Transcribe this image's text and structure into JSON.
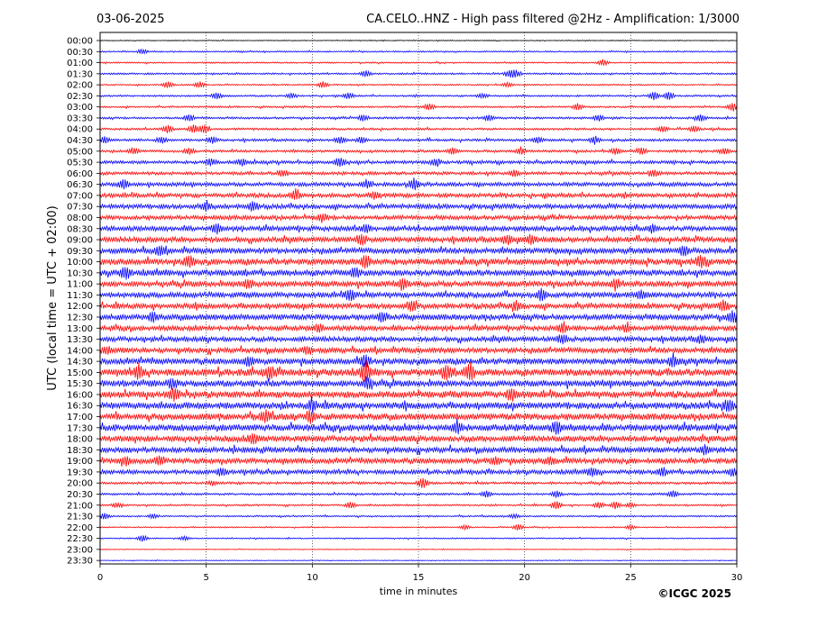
{
  "chart_data": {
    "type": "line",
    "date": "03-06-2025",
    "title": "CA.CELO..HNZ - High pass filtered @2Hz - Amplification: 1/3000",
    "xlabel": "time in minutes",
    "ylabel": "UTC (local time = UTC + 02:00)",
    "copyright": "©ICGC 2025",
    "xlim": [
      0,
      30
    ],
    "xticks": [
      "0",
      "5",
      "10",
      "15",
      "20",
      "25",
      "30"
    ],
    "xtick_values": [
      0,
      5,
      10,
      15,
      20,
      25,
      30
    ],
    "grid": "vertical dotted at each x tick",
    "series_colors": [
      "#000000",
      "#ff0000",
      "#0000ff"
    ],
    "rows": [
      {
        "label": "00:00",
        "color": "#000000",
        "amp": 0.5,
        "events": []
      },
      {
        "label": "00:30",
        "color": "#0000ff",
        "amp": 0.8,
        "events": [
          {
            "t": 2.0,
            "a": 2
          }
        ]
      },
      {
        "label": "01:00",
        "color": "#ff0000",
        "amp": 0.8,
        "events": [
          {
            "t": 23.7,
            "a": 3
          }
        ]
      },
      {
        "label": "01:30",
        "color": "#0000ff",
        "amp": 1.0,
        "events": [
          {
            "t": 12.5,
            "a": 3
          },
          {
            "t": 19.3,
            "a": 3
          },
          {
            "t": 19.6,
            "a": 3
          }
        ]
      },
      {
        "label": "02:00",
        "color": "#ff0000",
        "amp": 0.8,
        "events": [
          {
            "t": 3.2,
            "a": 3
          },
          {
            "t": 4.7,
            "a": 3
          },
          {
            "t": 10.5,
            "a": 3
          },
          {
            "t": 19.2,
            "a": 2
          }
        ]
      },
      {
        "label": "02:30",
        "color": "#0000ff",
        "amp": 1.0,
        "events": [
          {
            "t": 5.5,
            "a": 3
          },
          {
            "t": 9.0,
            "a": 2
          },
          {
            "t": 11.7,
            "a": 3
          },
          {
            "t": 18.0,
            "a": 2
          },
          {
            "t": 26.1,
            "a": 4
          },
          {
            "t": 26.8,
            "a": 4
          }
        ]
      },
      {
        "label": "03:00",
        "color": "#ff0000",
        "amp": 1.0,
        "events": [
          {
            "t": 15.5,
            "a": 3
          },
          {
            "t": 22.5,
            "a": 3
          },
          {
            "t": 29.8,
            "a": 4
          }
        ]
      },
      {
        "label": "03:30",
        "color": "#0000ff",
        "amp": 1.2,
        "events": [
          {
            "t": 4.2,
            "a": 3
          },
          {
            "t": 12.4,
            "a": 3
          },
          {
            "t": 18.3,
            "a": 3
          },
          {
            "t": 23.5,
            "a": 3
          },
          {
            "t": 28.3,
            "a": 3
          }
        ]
      },
      {
        "label": "04:00",
        "color": "#ff0000",
        "amp": 1.2,
        "events": [
          {
            "t": 3.2,
            "a": 4
          },
          {
            "t": 4.4,
            "a": 4
          },
          {
            "t": 4.9,
            "a": 4
          },
          {
            "t": 26.5,
            "a": 3
          },
          {
            "t": 28.0,
            "a": 3
          }
        ]
      },
      {
        "label": "04:30",
        "color": "#0000ff",
        "amp": 1.4,
        "events": [
          {
            "t": 0.2,
            "a": 3
          },
          {
            "t": 2.9,
            "a": 3
          },
          {
            "t": 5.3,
            "a": 3
          },
          {
            "t": 11.3,
            "a": 3
          },
          {
            "t": 12.3,
            "a": 3
          },
          {
            "t": 20.6,
            "a": 3
          },
          {
            "t": 23.3,
            "a": 3
          }
        ]
      },
      {
        "label": "05:00",
        "color": "#ff0000",
        "amp": 1.4,
        "events": [
          {
            "t": 1.6,
            "a": 3
          },
          {
            "t": 4.2,
            "a": 3
          },
          {
            "t": 16.6,
            "a": 3
          },
          {
            "t": 19.8,
            "a": 3
          },
          {
            "t": 24.3,
            "a": 3
          },
          {
            "t": 25.5,
            "a": 3
          },
          {
            "t": 29.4,
            "a": 3
          }
        ]
      },
      {
        "label": "05:30",
        "color": "#0000ff",
        "amp": 1.8,
        "events": [
          {
            "t": 5.2,
            "a": 3
          },
          {
            "t": 6.7,
            "a": 3
          },
          {
            "t": 11.3,
            "a": 4
          },
          {
            "t": 15.8,
            "a": 3
          }
        ]
      },
      {
        "label": "06:00",
        "color": "#ff0000",
        "amp": 1.8,
        "events": [
          {
            "t": 8.6,
            "a": 3
          },
          {
            "t": 19.5,
            "a": 3
          },
          {
            "t": 26.1,
            "a": 3
          }
        ]
      },
      {
        "label": "06:30",
        "color": "#0000ff",
        "amp": 2.2,
        "events": [
          {
            "t": 1.1,
            "a": 4
          },
          {
            "t": 12.6,
            "a": 3
          },
          {
            "t": 14.8,
            "a": 5
          }
        ]
      },
      {
        "label": "07:00",
        "color": "#ff0000",
        "amp": 2.4,
        "events": [
          {
            "t": 9.2,
            "a": 4
          },
          {
            "t": 12.9,
            "a": 3
          }
        ]
      },
      {
        "label": "07:30",
        "color": "#0000ff",
        "amp": 2.6,
        "events": [
          {
            "t": 5.0,
            "a": 4
          },
          {
            "t": 7.2,
            "a": 4
          }
        ]
      },
      {
        "label": "08:00",
        "color": "#ff0000",
        "amp": 2.4,
        "events": [
          {
            "t": 10.5,
            "a": 3
          }
        ]
      },
      {
        "label": "08:30",
        "color": "#0000ff",
        "amp": 2.8,
        "events": [
          {
            "t": 5.5,
            "a": 4
          },
          {
            "t": 12.5,
            "a": 3
          },
          {
            "t": 26.0,
            "a": 3
          }
        ]
      },
      {
        "label": "09:00",
        "color": "#ff0000",
        "amp": 3.0,
        "events": [
          {
            "t": 12.3,
            "a": 5
          },
          {
            "t": 19.2,
            "a": 4
          },
          {
            "t": 20.3,
            "a": 4
          }
        ]
      },
      {
        "label": "09:30",
        "color": "#0000ff",
        "amp": 3.2,
        "events": [
          {
            "t": 2.8,
            "a": 4
          },
          {
            "t": 27.5,
            "a": 4
          }
        ]
      },
      {
        "label": "10:00",
        "color": "#ff0000",
        "amp": 3.4,
        "events": [
          {
            "t": 4.2,
            "a": 5
          },
          {
            "t": 12.5,
            "a": 6
          },
          {
            "t": 28.3,
            "a": 5
          }
        ]
      },
      {
        "label": "10:30",
        "color": "#0000ff",
        "amp": 3.4,
        "events": [
          {
            "t": 1.2,
            "a": 5
          },
          {
            "t": 12.0,
            "a": 4
          }
        ]
      },
      {
        "label": "11:00",
        "color": "#ff0000",
        "amp": 3.2,
        "events": [
          {
            "t": 7.0,
            "a": 4
          },
          {
            "t": 14.3,
            "a": 4
          },
          {
            "t": 24.3,
            "a": 4
          }
        ]
      },
      {
        "label": "11:30",
        "color": "#0000ff",
        "amp": 3.0,
        "events": [
          {
            "t": 11.8,
            "a": 5
          },
          {
            "t": 20.8,
            "a": 5
          },
          {
            "t": 25.5,
            "a": 4
          }
        ]
      },
      {
        "label": "12:00",
        "color": "#ff0000",
        "amp": 3.0,
        "events": [
          {
            "t": 14.7,
            "a": 5
          },
          {
            "t": 19.6,
            "a": 4
          },
          {
            "t": 29.4,
            "a": 4
          }
        ]
      },
      {
        "label": "12:30",
        "color": "#0000ff",
        "amp": 3.2,
        "events": [
          {
            "t": 2.5,
            "a": 4
          },
          {
            "t": 13.3,
            "a": 4
          },
          {
            "t": 29.8,
            "a": 5
          }
        ]
      },
      {
        "label": "13:00",
        "color": "#ff0000",
        "amp": 2.8,
        "events": [
          {
            "t": 10.3,
            "a": 3
          },
          {
            "t": 21.8,
            "a": 4
          },
          {
            "t": 24.8,
            "a": 3
          }
        ]
      },
      {
        "label": "13:30",
        "color": "#0000ff",
        "amp": 2.8,
        "events": [
          {
            "t": 21.8,
            "a": 4
          },
          {
            "t": 28.3,
            "a": 3
          }
        ]
      },
      {
        "label": "14:00",
        "color": "#ff0000",
        "amp": 3.0,
        "events": [
          {
            "t": 0.3,
            "a": 3
          },
          {
            "t": 9.8,
            "a": 3
          }
        ]
      },
      {
        "label": "14:30",
        "color": "#0000ff",
        "amp": 3.4,
        "events": [
          {
            "t": 7.0,
            "a": 4
          },
          {
            "t": 12.5,
            "a": 5
          },
          {
            "t": 27.0,
            "a": 4
          }
        ]
      },
      {
        "label": "15:00",
        "color": "#ff0000",
        "amp": 4.0,
        "events": [
          {
            "t": 1.8,
            "a": 5
          },
          {
            "t": 12.5,
            "a": 8
          },
          {
            "t": 16.3,
            "a": 6
          },
          {
            "t": 17.4,
            "a": 7
          },
          {
            "t": 8.0,
            "a": 5
          }
        ]
      },
      {
        "label": "15:30",
        "color": "#0000ff",
        "amp": 3.6,
        "events": [
          {
            "t": 3.4,
            "a": 4
          },
          {
            "t": 12.6,
            "a": 5
          }
        ]
      },
      {
        "label": "16:00",
        "color": "#ff0000",
        "amp": 3.8,
        "events": [
          {
            "t": 3.5,
            "a": 5
          },
          {
            "t": 19.4,
            "a": 5
          }
        ]
      },
      {
        "label": "16:30",
        "color": "#0000ff",
        "amp": 3.8,
        "events": [
          {
            "t": 10.0,
            "a": 5
          },
          {
            "t": 29.6,
            "a": 5
          }
        ]
      },
      {
        "label": "17:00",
        "color": "#ff0000",
        "amp": 3.6,
        "events": [
          {
            "t": 9.9,
            "a": 5
          },
          {
            "t": 7.8,
            "a": 5
          }
        ]
      },
      {
        "label": "17:30",
        "color": "#0000ff",
        "amp": 3.8,
        "events": [
          {
            "t": 16.8,
            "a": 5
          },
          {
            "t": 21.5,
            "a": 5
          }
        ]
      },
      {
        "label": "18:00",
        "color": "#ff0000",
        "amp": 3.4,
        "events": [
          {
            "t": 7.2,
            "a": 4
          }
        ]
      },
      {
        "label": "18:30",
        "color": "#0000ff",
        "amp": 3.2,
        "events": [
          {
            "t": 28.5,
            "a": 4
          }
        ]
      },
      {
        "label": "19:00",
        "color": "#ff0000",
        "amp": 3.0,
        "events": [
          {
            "t": 1.2,
            "a": 4
          },
          {
            "t": 2.8,
            "a": 4
          },
          {
            "t": 18.6,
            "a": 3
          },
          {
            "t": 21.2,
            "a": 3
          }
        ]
      },
      {
        "label": "19:30",
        "color": "#0000ff",
        "amp": 2.4,
        "events": [
          {
            "t": 5.7,
            "a": 3
          },
          {
            "t": 23.2,
            "a": 4
          },
          {
            "t": 26.5,
            "a": 3
          },
          {
            "t": 29.8,
            "a": 3
          }
        ]
      },
      {
        "label": "20:00",
        "color": "#ff0000",
        "amp": 1.4,
        "events": [
          {
            "t": 15.2,
            "a": 5
          },
          {
            "t": 5.3,
            "a": 2
          }
        ]
      },
      {
        "label": "20:30",
        "color": "#0000ff",
        "amp": 1.2,
        "events": [
          {
            "t": 18.2,
            "a": 3
          },
          {
            "t": 21.5,
            "a": 3
          },
          {
            "t": 27.0,
            "a": 3
          }
        ]
      },
      {
        "label": "21:00",
        "color": "#ff0000",
        "amp": 1.0,
        "events": [
          {
            "t": 0.8,
            "a": 2
          },
          {
            "t": 11.8,
            "a": 3
          },
          {
            "t": 21.5,
            "a": 4
          },
          {
            "t": 23.5,
            "a": 3
          },
          {
            "t": 24.3,
            "a": 3
          },
          {
            "t": 25.0,
            "a": 2
          }
        ]
      },
      {
        "label": "21:30",
        "color": "#0000ff",
        "amp": 0.9,
        "events": [
          {
            "t": 0.2,
            "a": 3
          },
          {
            "t": 2.5,
            "a": 2
          },
          {
            "t": 19.5,
            "a": 2
          }
        ]
      },
      {
        "label": "22:00",
        "color": "#ff0000",
        "amp": 0.7,
        "events": [
          {
            "t": 17.2,
            "a": 2
          },
          {
            "t": 19.7,
            "a": 3
          },
          {
            "t": 25.0,
            "a": 2
          }
        ]
      },
      {
        "label": "22:30",
        "color": "#0000ff",
        "amp": 0.7,
        "events": [
          {
            "t": 2.0,
            "a": 3
          },
          {
            "t": 4.0,
            "a": 2
          }
        ]
      },
      {
        "label": "23:00",
        "color": "#ff0000",
        "amp": 0.4,
        "events": []
      },
      {
        "label": "23:30",
        "color": "#0000ff",
        "amp": 0.4,
        "events": []
      }
    ]
  }
}
